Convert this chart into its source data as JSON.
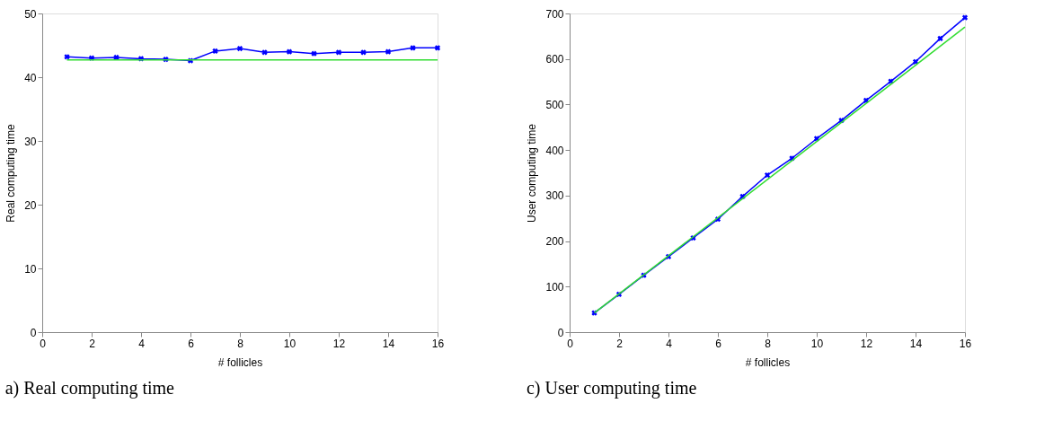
{
  "chart_data": [
    {
      "type": "line",
      "title": "a) Real computing time",
      "xlabel": "# follicles",
      "ylabel": "Real computing time",
      "xlim": [
        0,
        16
      ],
      "xticks": [
        0,
        2,
        4,
        6,
        8,
        10,
        12,
        14,
        16
      ],
      "ylim": [
        0,
        50
      ],
      "yticks": [
        0,
        10,
        20,
        30,
        40,
        50
      ],
      "grid": false,
      "series": [
        {
          "color": "#0000ff",
          "marker": "cross",
          "x": [
            1,
            2,
            3,
            4,
            5,
            6,
            7,
            8,
            9,
            10,
            11,
            12,
            13,
            14,
            15,
            16
          ],
          "values": [
            43.2,
            43.0,
            43.1,
            42.9,
            42.8,
            42.6,
            44.1,
            44.5,
            43.9,
            44.0,
            43.7,
            43.9,
            43.9,
            44.0,
            44.6,
            44.6
          ]
        },
        {
          "color": "#33dd33",
          "marker": "none",
          "x": [
            1,
            16
          ],
          "values": [
            42.7,
            42.7
          ]
        }
      ]
    },
    {
      "type": "line",
      "title": "c) User computing time",
      "xlabel": "# follicles",
      "ylabel": "User computing time",
      "xlim": [
        0,
        16
      ],
      "xticks": [
        0,
        2,
        4,
        6,
        8,
        10,
        12,
        14,
        16
      ],
      "ylim": [
        0,
        700
      ],
      "yticks": [
        0,
        100,
        200,
        300,
        400,
        500,
        600,
        700
      ],
      "grid": false,
      "series": [
        {
          "color": "#0000ff",
          "marker": "cross",
          "x": [
            1,
            2,
            3,
            4,
            5,
            6,
            7,
            8,
            9,
            10,
            11,
            12,
            13,
            14,
            15,
            16
          ],
          "values": [
            42,
            83,
            125,
            166,
            207,
            248,
            298,
            345,
            382,
            425,
            465,
            509,
            551,
            594,
            645,
            691
          ]
        },
        {
          "color": "#33dd33",
          "marker": "none",
          "x": [
            1,
            16
          ],
          "values": [
            42,
            670
          ]
        }
      ]
    }
  ]
}
